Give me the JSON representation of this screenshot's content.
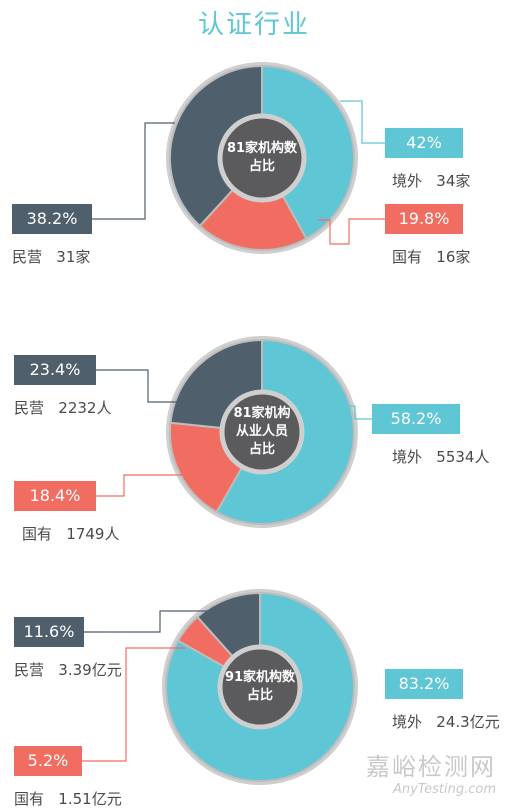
{
  "page_title": "认证行业",
  "colors": {
    "overseas": "#5ec6d4",
    "private": "#505f6c",
    "state": "#f26d61",
    "center": "#5b5a5d",
    "ring_border": "#cfcfcf"
  },
  "chart_data": [
    {
      "type": "pie",
      "center_label": "81家机构数\n占比",
      "slices": [
        {
          "key": "overseas",
          "percent_label": "42%",
          "caption": "境外   34家",
          "value": 42
        },
        {
          "key": "state",
          "percent_label": "19.8%",
          "caption": "国有   16家",
          "value": 19.8
        },
        {
          "key": "private",
          "percent_label": "38.2%",
          "caption": "民营   31家",
          "value": 38.2
        }
      ]
    },
    {
      "type": "pie",
      "center_label": "81家机构\n从业人员\n占比",
      "slices": [
        {
          "key": "overseas",
          "percent_label": "58.2%",
          "caption": "境外   5534人",
          "value": 58.2
        },
        {
          "key": "state",
          "percent_label": "18.4%",
          "caption": "国有   1749人",
          "value": 18.4
        },
        {
          "key": "private",
          "percent_label": "23.4%",
          "caption": "民营   2232人",
          "value": 23.4
        }
      ]
    },
    {
      "type": "pie",
      "center_label": "91家机构数\n占比",
      "slices": [
        {
          "key": "overseas",
          "percent_label": "83.2%",
          "caption": "境外   24.3亿元",
          "value": 83.2
        },
        {
          "key": "state",
          "percent_label": "5.2%",
          "caption": "国有   1.51亿元",
          "value": 5.2
        },
        {
          "key": "private",
          "percent_label": "11.6%",
          "caption": "民营   3.39亿元",
          "value": 11.6
        }
      ]
    }
  ],
  "watermark": {
    "cn": "嘉峪检测网",
    "en": "AnyTesting.com"
  }
}
